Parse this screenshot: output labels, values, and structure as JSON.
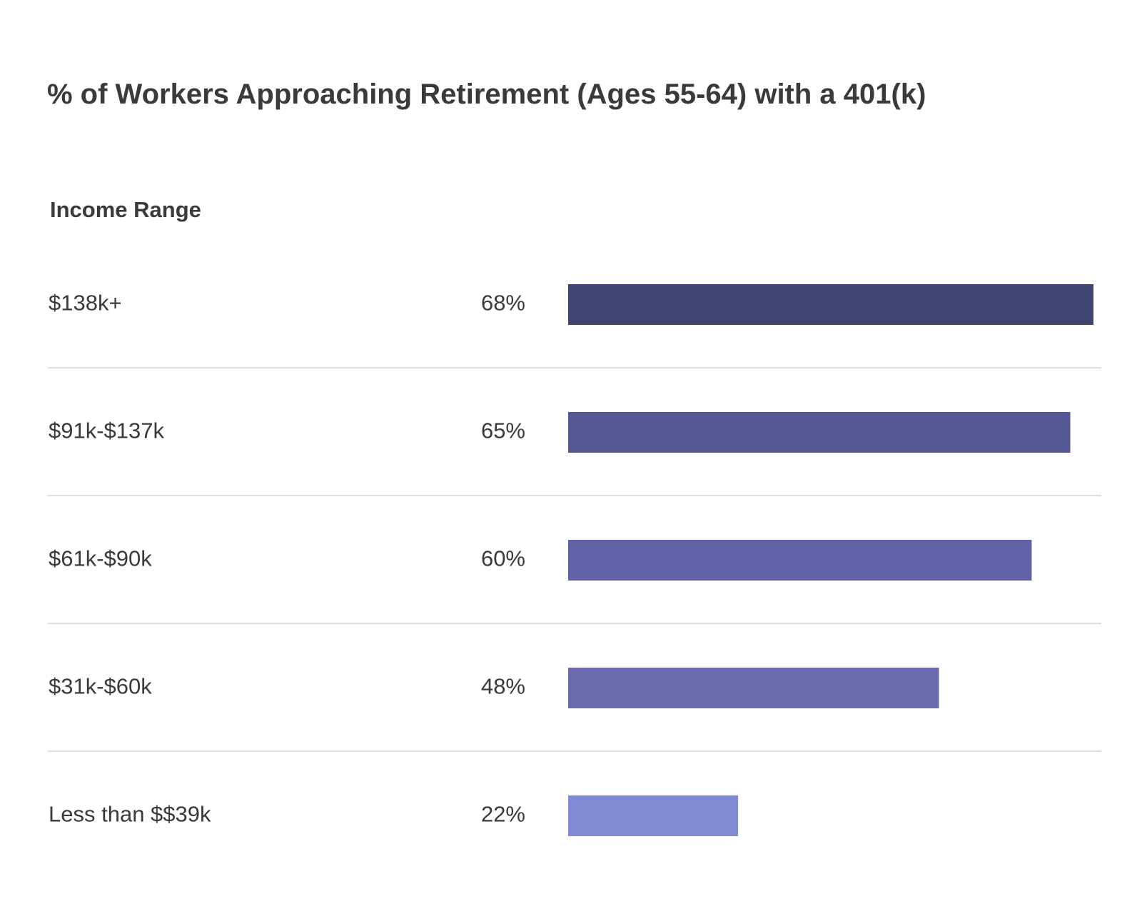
{
  "chart_data": {
    "type": "bar",
    "orientation": "horizontal",
    "title": "% of Workers Approaching Retirement (Ages 55-64) with a 401(k)",
    "category_header": "Income Range",
    "categories": [
      "$138k+",
      "$91k-$137k",
      "$61k-$90k",
      "$31k-$60k",
      "Less than $$39k"
    ],
    "values": [
      68,
      65,
      60,
      48,
      22
    ],
    "value_labels": [
      "68%",
      "65%",
      "60%",
      "48%",
      "22%"
    ],
    "colors": [
      "#3e4570",
      "#565894",
      "#5f62a6",
      "#6a6aae",
      "#7f8ad0"
    ],
    "unit": "%",
    "grid": false,
    "legend": "none"
  }
}
